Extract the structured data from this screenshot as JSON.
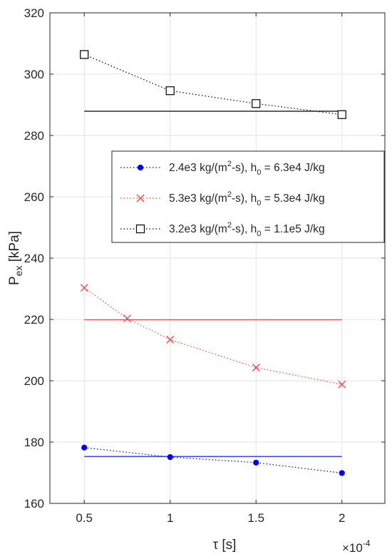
{
  "chart_data": {
    "type": "line",
    "xlabel": "τ [s]",
    "x_exponent_label": "×10",
    "x_exponent_power": "-4",
    "ylabel_main": "P",
    "ylabel_sub": "ex",
    "ylabel_unit": " [kPa]",
    "xlim": [
      0.3,
      2.25
    ],
    "ylim": [
      160,
      320
    ],
    "xticks": [
      0.5,
      1,
      1.5,
      2
    ],
    "xtick_labels": [
      "0.5",
      "1",
      "1.5",
      "2"
    ],
    "yticks": [
      160,
      180,
      200,
      220,
      240,
      260,
      280,
      300,
      320
    ],
    "ytick_labels": [
      "160",
      "180",
      "200",
      "220",
      "240",
      "260",
      "280",
      "300",
      "320"
    ],
    "grid": true,
    "legend_position": "right",
    "series": [
      {
        "legend": {
          "pre": "2.4e3 kg/(m",
          "sup": "2",
          "mid": "-s), h",
          "sub": "0",
          "post": " = 6.3e4 J/kg"
        },
        "color": "#0000ff",
        "marker": "dot",
        "x": [
          0.5,
          1,
          1.5,
          2
        ],
        "y": [
          178.2,
          175.1,
          173.3,
          169.9
        ],
        "reference_line": {
          "x": [
            0.5,
            2
          ],
          "y": 175.3
        }
      },
      {
        "legend": {
          "pre": "5.3e3 kg/(m",
          "sup": "2",
          "mid": "-s), h",
          "sub": "0",
          "post": " = 5.3e4 J/kg"
        },
        "color": "#ff4040",
        "marker": "x",
        "x": [
          0.5,
          0.75,
          1,
          1.5,
          2
        ],
        "y": [
          230.3,
          220.3,
          213.4,
          204.3,
          198.8
        ],
        "reference_line": {
          "x": [
            0.5,
            2
          ],
          "y": 219.9
        }
      },
      {
        "legend": {
          "pre": "3.2e3 kg/(m",
          "sup": "2",
          "mid": "-s), h",
          "sub": "0",
          "post": " = 1.1e5 J/kg"
        },
        "color": "#000000",
        "marker": "square",
        "x": [
          0.5,
          1,
          1.5,
          2
        ],
        "y": [
          306.4,
          294.6,
          290.4,
          286.8
        ],
        "reference_line": {
          "x": [
            0.5,
            2
          ],
          "y": 287.9
        }
      }
    ]
  }
}
